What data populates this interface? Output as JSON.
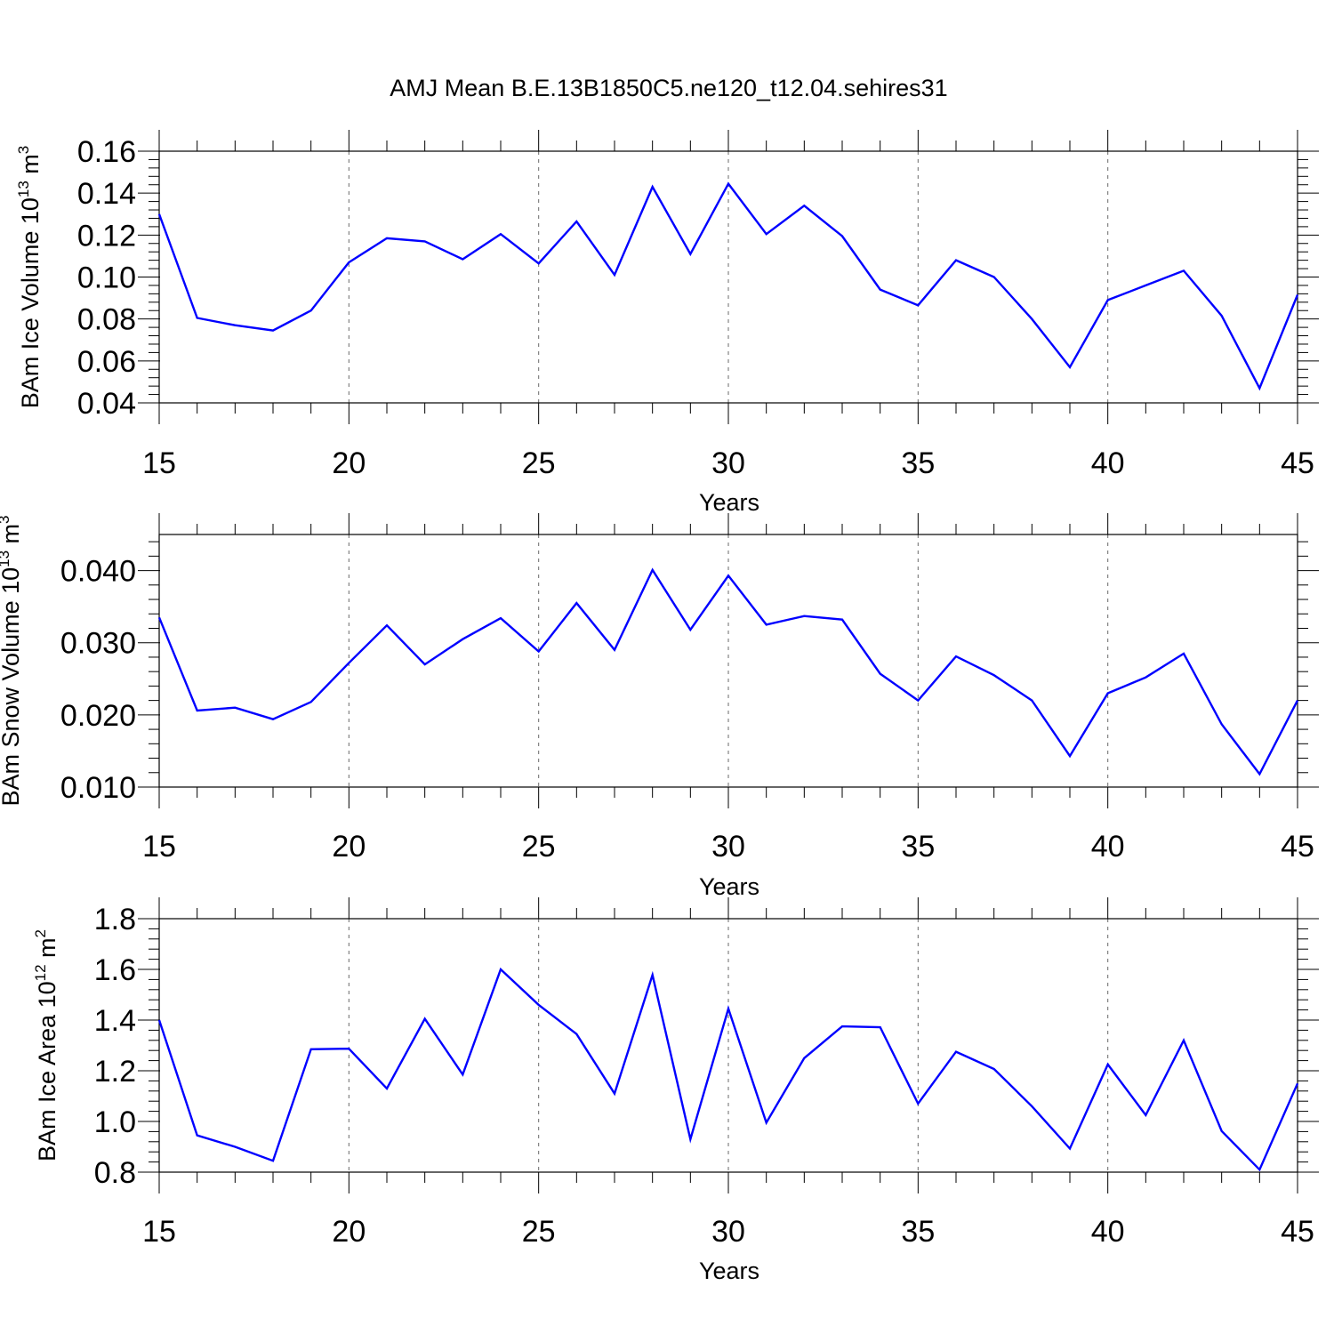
{
  "chart_data": {
    "title": "AMJ Mean B.E.13B1850C5.ne120_t12.04.sehires31",
    "type": "line",
    "panels": [
      {
        "xlabel": "Years",
        "ylabel": "BAm Ice Volume 10",
        "ylabel_sup": "13",
        "ylabel_unit": " m",
        "ylabel_unit_sup": "3",
        "xlim": [
          15,
          45
        ],
        "ylim": [
          0.04,
          0.16
        ],
        "xticks": [
          15,
          20,
          25,
          30,
          35,
          40,
          45
        ],
        "yticks": [
          "0.04",
          "0.06",
          "0.08",
          "0.10",
          "0.12",
          "0.14",
          "0.16"
        ],
        "color": "#0000ff",
        "x": [
          15,
          16,
          17,
          18,
          19,
          20,
          21,
          22,
          23,
          24,
          25,
          26,
          27,
          28,
          29,
          30,
          31,
          32,
          33,
          34,
          35,
          36,
          37,
          38,
          39,
          40,
          41,
          42,
          43,
          44,
          45
        ],
        "values": [
          0.13,
          0.0805,
          0.077,
          0.0745,
          0.084,
          0.107,
          0.1185,
          0.117,
          0.1085,
          0.1205,
          0.1065,
          0.1265,
          0.101,
          0.143,
          0.111,
          0.1445,
          0.1205,
          0.134,
          0.1195,
          0.094,
          0.0865,
          0.108,
          0.1,
          0.08,
          0.057,
          0.089,
          0.096,
          0.103,
          0.0815,
          0.047,
          0.0915
        ]
      },
      {
        "xlabel": "Years",
        "ylabel": "BAm Snow Volume 10",
        "ylabel_sup": "13",
        "ylabel_unit": " m",
        "ylabel_unit_sup": "3",
        "xlim": [
          15,
          45
        ],
        "ylim": [
          0.01,
          0.045
        ],
        "xticks": [
          15,
          20,
          25,
          30,
          35,
          40,
          45
        ],
        "yticks": [
          "0.010",
          "0.020",
          "0.030",
          "0.040"
        ],
        "color": "#0000ff",
        "x": [
          15,
          16,
          17,
          18,
          19,
          20,
          21,
          22,
          23,
          24,
          25,
          26,
          27,
          28,
          29,
          30,
          31,
          32,
          33,
          34,
          35,
          36,
          37,
          38,
          39,
          40,
          41,
          42,
          43,
          44,
          45
        ],
        "values": [
          0.0335,
          0.0206,
          0.021,
          0.0194,
          0.0218,
          0.0272,
          0.0324,
          0.027,
          0.0305,
          0.0334,
          0.0288,
          0.0355,
          0.029,
          0.0401,
          0.0318,
          0.0393,
          0.0325,
          0.0337,
          0.0332,
          0.0257,
          0.022,
          0.0281,
          0.0255,
          0.022,
          0.0143,
          0.023,
          0.0252,
          0.0285,
          0.0187,
          0.0118,
          0.022
        ]
      },
      {
        "xlabel": "Years",
        "ylabel": "BAm Ice Area 10",
        "ylabel_sup": "12",
        "ylabel_unit": " m",
        "ylabel_unit_sup": "2",
        "xlim": [
          15,
          45
        ],
        "ylim": [
          0.8,
          1.8
        ],
        "xticks": [
          15,
          20,
          25,
          30,
          35,
          40,
          45
        ],
        "yticks": [
          "0.8",
          "1.0",
          "1.2",
          "1.4",
          "1.6",
          "1.8"
        ],
        "color": "#0000ff",
        "x": [
          15,
          16,
          17,
          18,
          19,
          20,
          21,
          22,
          23,
          24,
          25,
          26,
          27,
          28,
          29,
          30,
          31,
          32,
          33,
          34,
          35,
          36,
          37,
          38,
          39,
          40,
          41,
          42,
          43,
          44,
          45
        ],
        "values": [
          1.4,
          0.945,
          0.9,
          0.845,
          1.285,
          1.287,
          1.13,
          1.405,
          1.185,
          1.6,
          1.46,
          1.345,
          1.11,
          1.578,
          0.93,
          1.445,
          0.995,
          1.25,
          1.375,
          1.372,
          1.07,
          1.275,
          1.207,
          1.06,
          0.893,
          1.225,
          1.025,
          1.32,
          0.962,
          0.81,
          1.15
        ]
      }
    ]
  }
}
